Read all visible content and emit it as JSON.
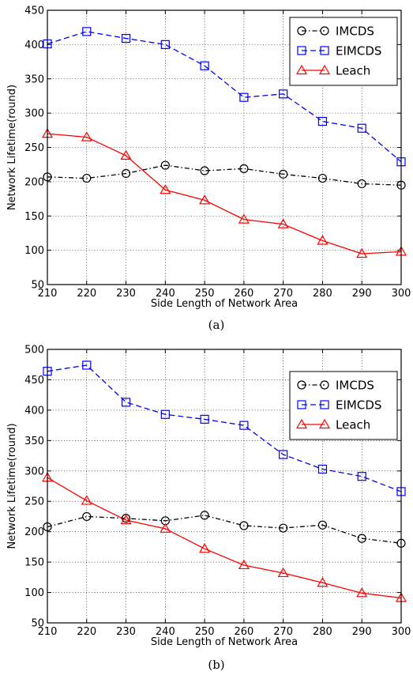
{
  "chart_data": [
    {
      "type": "line",
      "caption": "(a)",
      "xlabel": "Side Length of Network Area",
      "ylabel": "Network Lifetime(round)",
      "xlim": [
        210,
        300
      ],
      "ylim": [
        50,
        450
      ],
      "xticks": [
        210,
        220,
        230,
        240,
        250,
        260,
        270,
        280,
        290,
        300
      ],
      "yticks": [
        50,
        100,
        150,
        200,
        250,
        300,
        350,
        400,
        450
      ],
      "grid": true,
      "legend": "top-right",
      "x": [
        210,
        220,
        230,
        240,
        250,
        260,
        270,
        280,
        290,
        300
      ],
      "series": [
        {
          "name": "IMCDS",
          "color": "#000000",
          "marker": "circle",
          "dash": "dash-dot",
          "values": [
            207,
            205,
            212,
            224,
            216,
            219,
            211,
            205,
            197,
            195
          ]
        },
        {
          "name": "EIMCDS",
          "color": "#0000ff",
          "marker": "square",
          "dash": "dashed",
          "values": [
            401,
            419,
            409,
            400,
            369,
            323,
            328,
            288,
            278,
            229
          ]
        },
        {
          "name": "Leach",
          "color": "#ff0000",
          "marker": "triangle",
          "dash": "solid",
          "values": [
            270,
            265,
            238,
            188,
            173,
            145,
            138,
            114,
            95,
            98
          ]
        }
      ]
    },
    {
      "type": "line",
      "caption": "(b)",
      "xlabel": "Side Length of Network Area",
      "ylabel": "Network Lifetime(round)",
      "xlim": [
        210,
        300
      ],
      "ylim": [
        50,
        500
      ],
      "xticks": [
        210,
        220,
        230,
        240,
        250,
        260,
        270,
        280,
        290,
        300
      ],
      "yticks": [
        50,
        100,
        150,
        200,
        250,
        300,
        350,
        400,
        450,
        500
      ],
      "grid": true,
      "legend": "top-right",
      "x": [
        210,
        220,
        230,
        240,
        250,
        260,
        270,
        280,
        290,
        300
      ],
      "series": [
        {
          "name": "IMCDS",
          "color": "#000000",
          "marker": "circle",
          "dash": "dash-dot",
          "values": [
            208,
            225,
            222,
            218,
            227,
            210,
            206,
            211,
            189,
            181
          ]
        },
        {
          "name": "EIMCDS",
          "color": "#0000ff",
          "marker": "square",
          "dash": "dashed",
          "values": [
            464,
            474,
            413,
            393,
            385,
            375,
            327,
            303,
            291,
            266
          ]
        },
        {
          "name": "Leach",
          "color": "#ff0000",
          "marker": "triangle",
          "dash": "solid",
          "values": [
            289,
            251,
            219,
            205,
            172,
            145,
            132,
            116,
            99,
            91
          ]
        }
      ]
    }
  ]
}
